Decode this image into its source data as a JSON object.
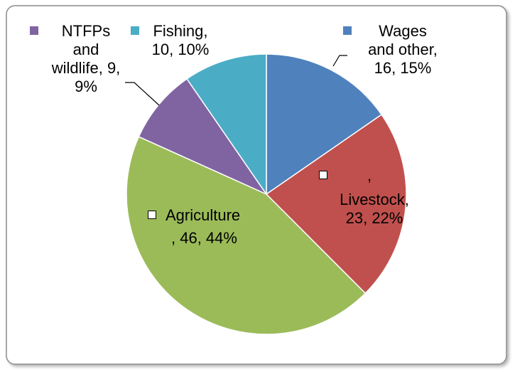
{
  "chart_data": {
    "type": "pie",
    "title": "",
    "slices": [
      {
        "name": "Wages and other",
        "value": 16,
        "percent": "15%",
        "color": "#4F81BD"
      },
      {
        "name": "Livestock",
        "value": 23,
        "percent": "22%",
        "color": "#C0504D"
      },
      {
        "name": "Agriculture",
        "value": 46,
        "percent": "44%",
        "color": "#9BBB59"
      },
      {
        "name": "NTFPs and wildlife",
        "value": 9,
        "percent": "9%",
        "color": "#8064A2"
      },
      {
        "name": "Fishing",
        "value": 10,
        "percent": "10%",
        "color": "#4BACC6"
      }
    ],
    "data_labels": {
      "wages": "Wages\nand other,\n16, 15%",
      "livestock_line1": ",",
      "livestock_rest": "Livestock,\n23, 22%",
      "agriculture_line1": "Agriculture",
      "agriculture_line2": ", 46, 44%",
      "ntfps": "NTFPs\nand\nwildlife, 9,\n9%",
      "fishing": "Fishing,\n10, 10%"
    },
    "legend": "inline-with-labels"
  }
}
